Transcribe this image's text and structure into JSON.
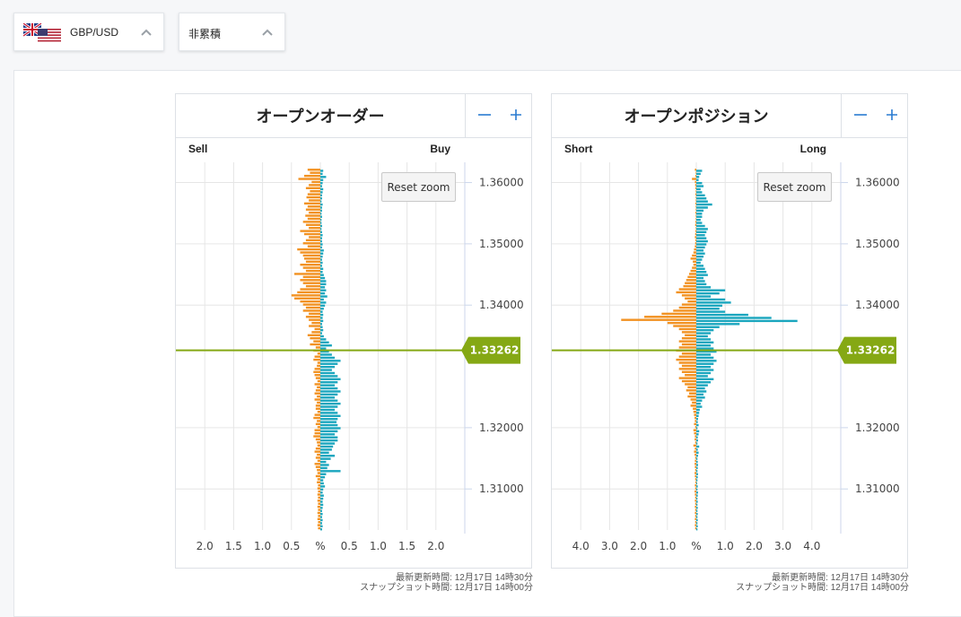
{
  "selectors": {
    "pair": {
      "label": "GBP/USD",
      "flag": "uk-us-flag-icon"
    },
    "mode": {
      "label": "非累積"
    }
  },
  "colors": {
    "sell_short": "#f29222",
    "buy_long": "#1aa6be",
    "price_line": "#85a814",
    "grid": "#e6e6e6"
  },
  "panels": [
    {
      "title": "オープンオーダー",
      "left_label": "Sell",
      "right_label": "Buy",
      "reset_label": "Reset zoom",
      "current_price": "1.33262",
      "meta_updated": "最新更新時間: 12月17日 14時30分",
      "meta_snapshot": "スナップショット時間: 12月17日 14時00分"
    },
    {
      "title": "オープンポジション",
      "left_label": "Short",
      "right_label": "Long",
      "reset_label": "Reset zoom",
      "current_price": "1.33262",
      "meta_updated": "最新更新時間: 12月17日 14時30分",
      "meta_snapshot": "スナップショット時間: 12月17日 14時00分"
    }
  ],
  "chart_data": [
    {
      "type": "bar",
      "orientation": "horizontal",
      "title": "オープンオーダー",
      "xlim": [
        -2.5,
        2.5
      ],
      "ylim": [
        1.3033,
        1.3633
      ],
      "x_ticks": [
        "2.0",
        "1.5",
        "1.0",
        "0.5",
        "%",
        "0.5",
        "1.0",
        "1.5",
        "2.0"
      ],
      "x_tick_values": [
        -2.0,
        -1.5,
        -1.0,
        -0.5,
        0,
        0.5,
        1.0,
        1.5,
        2.0
      ],
      "y_ticks": [
        "1.36000",
        "1.35000",
        "1.34000",
        "1.32000",
        "1.31000"
      ],
      "y_tick_values": [
        1.36,
        1.35,
        1.34,
        1.32,
        1.31
      ],
      "current_price": 1.33262,
      "legend": [
        "Sell",
        "Buy"
      ],
      "series": [
        {
          "name": "Sell",
          "values": [
            0.22,
            0.18,
            0.28,
            0.38,
            0.15,
            0.2,
            0.25,
            0.18,
            0.22,
            0.24,
            0.2,
            0.28,
            0.22,
            0.25,
            0.2,
            0.26,
            0.22,
            0.3,
            0.25,
            0.2,
            0.35,
            0.28,
            0.2,
            0.25,
            0.3,
            0.22,
            0.4,
            0.35,
            0.3,
            0.28,
            0.25,
            0.35,
            0.3,
            0.25,
            0.45,
            0.3,
            0.35,
            0.3,
            0.25,
            0.35,
            0.4,
            0.5,
            0.45,
            0.35,
            0.3,
            0.25,
            0.3,
            0.2,
            0.25,
            0.2,
            0.15,
            0.2,
            0.1,
            0.15,
            0.22,
            0.18,
            0.12,
            0.18,
            0.08,
            0.12,
            0.05,
            0.1,
            0.12,
            0.05,
            0.06,
            0.1,
            0.12,
            0.1,
            0.08,
            0.05,
            0.1,
            0.06,
            0.08,
            0.1,
            0.06,
            0.1,
            0.06,
            0.08,
            0.08,
            0.05,
            0.1,
            0.12,
            0.06,
            0.08,
            0.05,
            0.1,
            0.1,
            0.12,
            0.08,
            0.06,
            0.05,
            0.08,
            0.1,
            0.06,
            0.08,
            0.05,
            0.1,
            0.08,
            0.06,
            0.05,
            0.08,
            0.05,
            0.06,
            0.04,
            0.05,
            0.04,
            0.05,
            0.04,
            0.05,
            0.04,
            0.05,
            0.04,
            0.05,
            0.04,
            0.05,
            0.04,
            0.05,
            0.04,
            0.05,
            0.04
          ],
          "y_start": 1.362,
          "y_step": -0.0005
        },
        {
          "name": "Buy",
          "values": [
            0.05,
            0.04,
            0.1,
            0.05,
            0.04,
            0.03,
            0.05,
            0.04,
            0.03,
            0.03,
            0.02,
            0.04,
            0.03,
            0.03,
            0.02,
            0.03,
            0.02,
            0.02,
            0.03,
            0.02,
            0.03,
            0.04,
            0.03,
            0.03,
            0.04,
            0.03,
            0.06,
            0.05,
            0.04,
            0.03,
            0.04,
            0.03,
            0.05,
            0.04,
            0.06,
            0.08,
            0.1,
            0.1,
            0.08,
            0.1,
            0.08,
            0.12,
            0.06,
            0.1,
            0.08,
            0.06,
            0.04,
            0.05,
            0.04,
            0.05,
            0.03,
            0.04,
            0.05,
            0.03,
            0.06,
            0.1,
            0.15,
            0.2,
            0.1,
            0.15,
            0.2,
            0.25,
            0.35,
            0.3,
            0.25,
            0.2,
            0.25,
            0.3,
            0.35,
            0.3,
            0.25,
            0.3,
            0.35,
            0.3,
            0.25,
            0.3,
            0.35,
            0.3,
            0.25,
            0.3,
            0.35,
            0.3,
            0.28,
            0.3,
            0.35,
            0.3,
            0.25,
            0.3,
            0.3,
            0.25,
            0.22,
            0.2,
            0.15,
            0.25,
            0.18,
            0.1,
            0.15,
            0.12,
            0.35,
            0.1,
            0.08,
            0.05,
            0.06,
            0.08,
            0.05,
            0.04,
            0.06,
            0.05,
            0.04,
            0.05,
            0.04,
            0.03,
            0.04,
            0.03,
            0.04,
            0.03,
            0.04,
            0.03,
            0.04,
            0.03
          ],
          "y_start": 1.362,
          "y_step": -0.0005
        }
      ]
    },
    {
      "type": "bar",
      "orientation": "horizontal",
      "title": "オープンポジション",
      "xlim": [
        -5.0,
        5.0
      ],
      "ylim": [
        1.3033,
        1.3633
      ],
      "x_ticks": [
        "4.0",
        "3.0",
        "2.0",
        "1.0",
        "%",
        "1.0",
        "2.0",
        "3.0",
        "4.0"
      ],
      "x_tick_values": [
        -4.0,
        -3.0,
        -2.0,
        -1.0,
        0,
        1.0,
        2.0,
        3.0,
        4.0
      ],
      "y_ticks": [
        "1.36000",
        "1.35000",
        "1.34000",
        "1.32000",
        "1.31000"
      ],
      "y_tick_values": [
        1.36,
        1.35,
        1.34,
        1.32,
        1.31
      ],
      "current_price": 1.33262,
      "legend": [
        "Short",
        "Long"
      ],
      "series": [
        {
          "name": "Short",
          "values": [
            0.05,
            0.02,
            0.03,
            0.15,
            0.05,
            0.04,
            0.03,
            0.02,
            0.03,
            0.02,
            0.02,
            0.03,
            0.02,
            0.02,
            0.03,
            0.02,
            0.02,
            0.03,
            0.04,
            0.02,
            0.03,
            0.04,
            0.05,
            0.03,
            0.04,
            0.05,
            0.08,
            0.1,
            0.15,
            0.2,
            0.12,
            0.1,
            0.15,
            0.2,
            0.25,
            0.3,
            0.35,
            0.4,
            0.45,
            0.6,
            0.7,
            0.5,
            0.4,
            0.3,
            0.5,
            0.6,
            0.8,
            1.2,
            1.8,
            2.6,
            1.0,
            0.8,
            0.6,
            0.5,
            0.4,
            0.5,
            0.6,
            0.5,
            0.6,
            0.7,
            0.5,
            0.6,
            0.7,
            0.6,
            0.5,
            0.6,
            0.5,
            0.4,
            0.6,
            0.5,
            0.4,
            0.3,
            0.35,
            0.25,
            0.3,
            0.2,
            0.15,
            0.2,
            0.12,
            0.1,
            0.08,
            0.06,
            0.05,
            0.08,
            0.04,
            0.1,
            0.08,
            0.05,
            0.06,
            0.04,
            0.1,
            0.05,
            0.08,
            0.06,
            0.04,
            0.05,
            0.06,
            0.05,
            0.04,
            0.06,
            0.05,
            0.04,
            0.03,
            0.05,
            0.04,
            0.06,
            0.05,
            0.04,
            0.05,
            0.04,
            0.05,
            0.04,
            0.05,
            0.04,
            0.05,
            0.04,
            0.05,
            0.04,
            0.05,
            0.04
          ],
          "y_start": 1.362,
          "y_step": -0.0005
        },
        {
          "name": "Long",
          "values": [
            0.2,
            0.15,
            0.1,
            0.08,
            0.2,
            0.25,
            0.15,
            0.2,
            0.3,
            0.35,
            0.4,
            0.55,
            0.4,
            0.25,
            0.2,
            0.2,
            0.15,
            0.2,
            0.3,
            0.4,
            0.35,
            0.3,
            0.35,
            0.4,
            0.35,
            0.3,
            0.25,
            0.3,
            0.25,
            0.2,
            0.15,
            0.25,
            0.3,
            0.35,
            0.4,
            0.25,
            0.3,
            0.35,
            0.5,
            1.0,
            0.8,
            0.5,
            1.0,
            1.2,
            0.9,
            0.8,
            1.0,
            1.8,
            2.6,
            3.5,
            1.5,
            0.8,
            0.6,
            0.5,
            0.4,
            0.5,
            0.6,
            0.5,
            0.6,
            0.7,
            0.5,
            0.6,
            0.7,
            0.6,
            0.5,
            0.6,
            0.5,
            0.4,
            0.6,
            0.5,
            0.4,
            0.3,
            0.35,
            0.25,
            0.3,
            0.2,
            0.15,
            0.2,
            0.12,
            0.1,
            0.08,
            0.06,
            0.05,
            0.08,
            0.04,
            0.1,
            0.08,
            0.05,
            0.06,
            0.04,
            0.1,
            0.05,
            0.08,
            0.06,
            0.04,
            0.05,
            0.06,
            0.05,
            0.04,
            0.06,
            0.05,
            0.04,
            0.03,
            0.05,
            0.04,
            0.06,
            0.05,
            0.04,
            0.05,
            0.04,
            0.05,
            0.04,
            0.05,
            0.04,
            0.05,
            0.04,
            0.05,
            0.04,
            0.05,
            0.04
          ],
          "y_start": 1.362,
          "y_step": -0.0005
        }
      ]
    }
  ]
}
